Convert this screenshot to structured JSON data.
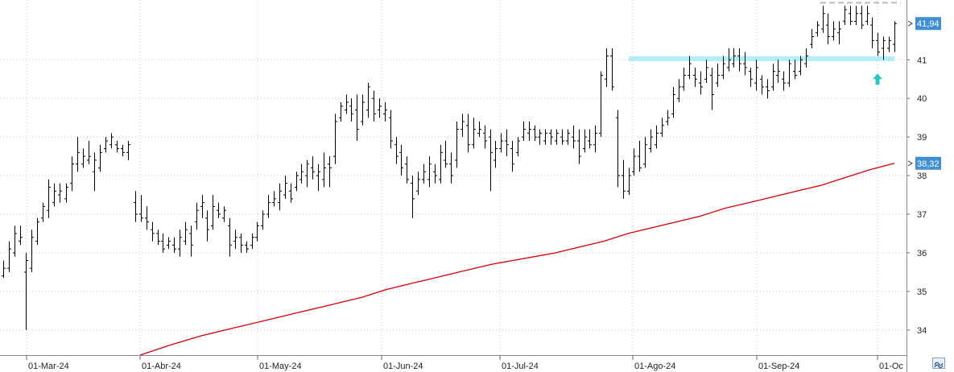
{
  "chart_data": {
    "type": "ohlc",
    "x_tick_labels": [
      "01-Mar-24",
      "01-Abr-24",
      "01-May-24",
      "01-Jun-24",
      "01-Jul-24",
      "01-Ago-24",
      "01-Sep-24",
      "01-Oc"
    ],
    "y_tick_labels": [
      "34",
      "35",
      "36",
      "37",
      "38",
      "39",
      "40",
      "41"
    ],
    "ylim": [
      33.35,
      42.55
    ],
    "grid": "dotted",
    "last_price_label": "41,94",
    "last_price": 41.94,
    "ma_label": "38,32",
    "ma_value": 38.32,
    "ma_color": "#d40000",
    "bar_color": "#000000",
    "resistance_level": 41.03,
    "resistance_color": "#a8ecf4",
    "top_dashed_level": 42.48,
    "arrow_color": "#2ec4c4",
    "price_tag_color": "#3f8fd2",
    "bars": [
      [
        35.35,
        35.8,
        35.4,
        35.6
      ],
      [
        35.5,
        36.3,
        35.6,
        36.1
      ],
      [
        35.9,
        36.7,
        36.0,
        36.5
      ],
      [
        36.2,
        36.7,
        36.3,
        36.4
      ],
      [
        34.0,
        36.0,
        35.5,
        35.8
      ],
      [
        35.5,
        36.6,
        35.6,
        36.4
      ],
      [
        36.2,
        36.9,
        36.3,
        36.8
      ],
      [
        36.8,
        37.3,
        36.9,
        37.2
      ],
      [
        36.9,
        37.9,
        37.1,
        37.7
      ],
      [
        37.2,
        37.8,
        37.3,
        37.6
      ],
      [
        37.3,
        37.8,
        37.5,
        37.6
      ],
      [
        37.3,
        37.8,
        37.4,
        37.7
      ],
      [
        37.6,
        38.5,
        37.8,
        38.3
      ],
      [
        38.1,
        39.0,
        38.3,
        38.6
      ],
      [
        38.2,
        38.7,
        38.3,
        38.5
      ],
      [
        38.3,
        38.9,
        38.4,
        38.5
      ],
      [
        37.6,
        38.6,
        38.1,
        38.4
      ],
      [
        38.1,
        38.8,
        38.2,
        38.6
      ],
      [
        38.6,
        39.0,
        38.7,
        38.9
      ],
      [
        38.7,
        39.1,
        38.8,
        39.0
      ],
      [
        38.6,
        38.9,
        38.8,
        38.7
      ],
      [
        38.5,
        38.8,
        38.7,
        38.6
      ],
      [
        38.4,
        38.9,
        38.6,
        38.8
      ],
      [
        36.8,
        37.6,
        37.3,
        37.0
      ],
      [
        36.8,
        37.5,
        37.0,
        36.9
      ],
      [
        36.6,
        37.2,
        36.9,
        36.8
      ],
      [
        36.3,
        36.8,
        36.6,
        36.5
      ],
      [
        36.2,
        36.6,
        36.5,
        36.3
      ],
      [
        36.0,
        36.5,
        36.3,
        36.1
      ],
      [
        36.1,
        36.4,
        36.2,
        36.3
      ],
      [
        36.0,
        36.4,
        36.2,
        36.1
      ],
      [
        35.9,
        36.6,
        36.1,
        36.4
      ],
      [
        36.2,
        36.8,
        36.3,
        36.6
      ],
      [
        35.9,
        36.7,
        36.5,
        36.2
      ],
      [
        36.6,
        37.3,
        36.8,
        37.1
      ],
      [
        36.9,
        37.5,
        37.2,
        37.3
      ],
      [
        36.3,
        37.1,
        36.9,
        36.6
      ],
      [
        36.6,
        37.5,
        36.7,
        37.2
      ],
      [
        36.9,
        37.3,
        37.1,
        37.0
      ],
      [
        36.8,
        37.2,
        36.9,
        37.1
      ],
      [
        35.9,
        36.9,
        36.7,
        36.2
      ],
      [
        36.1,
        36.6,
        36.3,
        36.4
      ],
      [
        36.0,
        36.5,
        36.4,
        36.2
      ],
      [
        36.0,
        36.3,
        36.2,
        36.1
      ],
      [
        36.1,
        36.5,
        36.2,
        36.4
      ],
      [
        36.3,
        36.8,
        36.4,
        36.7
      ],
      [
        36.6,
        37.1,
        36.7,
        37.0
      ],
      [
        36.9,
        37.5,
        37.0,
        37.3
      ],
      [
        37.2,
        37.6,
        37.3,
        37.4
      ],
      [
        37.1,
        37.8,
        37.3,
        37.6
      ],
      [
        37.4,
        38.0,
        37.5,
        37.8
      ],
      [
        37.3,
        37.8,
        37.6,
        37.4
      ],
      [
        37.6,
        38.1,
        37.7,
        38.0
      ],
      [
        37.8,
        38.3,
        37.9,
        38.1
      ],
      [
        37.7,
        38.4,
        38.0,
        38.3
      ],
      [
        37.9,
        38.5,
        38.2,
        38.1
      ],
      [
        37.6,
        38.3,
        38.0,
        38.1
      ],
      [
        37.7,
        38.6,
        37.9,
        38.2
      ],
      [
        37.7,
        38.5,
        38.3,
        38.2
      ],
      [
        38.3,
        39.6,
        38.5,
        39.4
      ],
      [
        39.4,
        39.9,
        39.5,
        39.8
      ],
      [
        39.6,
        40.1,
        39.7,
        39.9
      ],
      [
        39.4,
        40.0,
        39.8,
        39.6
      ],
      [
        38.9,
        40.1,
        39.7,
        39.2
      ],
      [
        39.3,
        40.1,
        39.4,
        39.9
      ],
      [
        39.5,
        40.4,
        39.7,
        40.3
      ],
      [
        39.4,
        40.2,
        40.0,
        39.6
      ],
      [
        39.5,
        40.0,
        39.7,
        39.8
      ],
      [
        39.4,
        39.9,
        39.6,
        39.7
      ],
      [
        38.7,
        39.7,
        39.5,
        38.9
      ],
      [
        38.3,
        39.0,
        38.8,
        38.5
      ],
      [
        38.0,
        38.8,
        38.6,
        38.2
      ],
      [
        37.8,
        38.5,
        38.3,
        37.9
      ],
      [
        36.9,
        38.0,
        37.8,
        37.4
      ],
      [
        37.5,
        38.1,
        37.6,
        37.9
      ],
      [
        37.8,
        38.3,
        37.9,
        38.1
      ],
      [
        37.7,
        38.5,
        37.9,
        38.3
      ],
      [
        37.8,
        38.3,
        38.1,
        38.0
      ],
      [
        37.8,
        38.8,
        37.9,
        38.6
      ],
      [
        38.2,
        38.9,
        38.4,
        38.3
      ],
      [
        37.8,
        38.6,
        38.3,
        38.0
      ],
      [
        38.2,
        39.4,
        38.4,
        39.2
      ],
      [
        39.0,
        39.6,
        39.2,
        39.4
      ],
      [
        38.6,
        39.6,
        39.3,
        38.8
      ],
      [
        38.7,
        39.5,
        38.8,
        39.2
      ],
      [
        39.0,
        39.4,
        39.1,
        39.2
      ],
      [
        38.7,
        39.3,
        39.1,
        38.9
      ],
      [
        37.6,
        39.2,
        39.0,
        38.6
      ],
      [
        38.2,
        38.9,
        38.4,
        38.7
      ],
      [
        38.6,
        39.1,
        38.7,
        38.9
      ],
      [
        38.5,
        39.2,
        38.9,
        38.8
      ],
      [
        38.1,
        38.9,
        38.7,
        38.3
      ],
      [
        38.5,
        39.0,
        38.6,
        38.9
      ],
      [
        38.9,
        39.4,
        39.0,
        39.2
      ],
      [
        38.9,
        39.4,
        39.1,
        39.2
      ],
      [
        38.9,
        39.3,
        39.2,
        39.0
      ],
      [
        38.8,
        39.2,
        39.0,
        39.1
      ],
      [
        38.8,
        39.2,
        38.9,
        39.1
      ],
      [
        38.8,
        39.2,
        39.1,
        39.0
      ],
      [
        38.8,
        39.2,
        38.9,
        39.1
      ],
      [
        38.8,
        39.2,
        39.0,
        38.9
      ],
      [
        38.8,
        39.2,
        38.9,
        39.1
      ],
      [
        38.7,
        39.3,
        39.0,
        38.9
      ],
      [
        38.3,
        39.2,
        38.9,
        38.5
      ],
      [
        38.6,
        39.2,
        38.7,
        39.0
      ],
      [
        38.7,
        39.2,
        38.9,
        38.8
      ],
      [
        38.6,
        39.3,
        38.8,
        39.1
      ],
      [
        39.0,
        40.7,
        39.1,
        40.6
      ],
      [
        40.3,
        41.3,
        40.5,
        41.1
      ],
      [
        40.2,
        41.3,
        41.1,
        40.3
      ],
      [
        37.7,
        39.7,
        39.5,
        38.0
      ],
      [
        37.4,
        38.4,
        38.0,
        37.6
      ],
      [
        37.5,
        38.2,
        37.6,
        38.0
      ],
      [
        38.0,
        38.7,
        38.1,
        38.5
      ],
      [
        38.1,
        38.9,
        38.5,
        38.2
      ],
      [
        38.2,
        39.0,
        38.3,
        38.8
      ],
      [
        38.6,
        39.2,
        38.7,
        39.0
      ],
      [
        38.7,
        39.3,
        38.8,
        39.1
      ],
      [
        39.0,
        39.5,
        39.1,
        39.3
      ],
      [
        39.3,
        39.7,
        39.4,
        39.5
      ],
      [
        39.5,
        40.3,
        39.6,
        40.1
      ],
      [
        39.9,
        40.5,
        40.0,
        40.3
      ],
      [
        40.2,
        40.8,
        40.3,
        40.6
      ],
      [
        40.5,
        41.1,
        40.6,
        40.9
      ],
      [
        40.3,
        40.8,
        40.6,
        40.5
      ],
      [
        40.1,
        40.7,
        40.4,
        40.3
      ],
      [
        40.4,
        41.0,
        40.5,
        40.8
      ],
      [
        39.7,
        40.8,
        40.6,
        40.1
      ],
      [
        40.3,
        40.9,
        40.4,
        40.6
      ],
      [
        40.5,
        41.1,
        40.6,
        40.9
      ],
      [
        40.7,
        41.3,
        40.8,
        41.0
      ],
      [
        40.8,
        41.3,
        40.9,
        41.1
      ],
      [
        40.7,
        41.3,
        41.1,
        40.9
      ],
      [
        40.6,
        41.2,
        40.9,
        40.8
      ],
      [
        40.3,
        40.8,
        40.7,
        40.5
      ],
      [
        40.2,
        41.0,
        40.4,
        40.8
      ],
      [
        40.1,
        40.6,
        40.5,
        40.3
      ],
      [
        40.0,
        40.5,
        40.3,
        40.2
      ],
      [
        40.2,
        40.9,
        40.3,
        40.7
      ],
      [
        40.4,
        41.0,
        40.6,
        40.7
      ],
      [
        40.2,
        40.7,
        40.5,
        40.4
      ],
      [
        40.3,
        41.0,
        40.4,
        40.9
      ],
      [
        40.5,
        41.0,
        40.7,
        40.6
      ],
      [
        40.6,
        41.1,
        40.7,
        41.0
      ],
      [
        40.8,
        41.3,
        40.9,
        41.1
      ],
      [
        41.3,
        41.8,
        41.4,
        41.6
      ],
      [
        41.6,
        42.0,
        41.7,
        41.9
      ],
      [
        41.7,
        42.4,
        41.8,
        42.2
      ],
      [
        41.4,
        42.2,
        41.9,
        41.6
      ],
      [
        41.5,
        42.0,
        41.6,
        41.8
      ],
      [
        41.4,
        42.0,
        41.7,
        41.8
      ],
      [
        41.9,
        42.4,
        42.0,
        42.3
      ],
      [
        41.9,
        42.4,
        42.2,
        42.0
      ],
      [
        41.9,
        42.4,
        42.0,
        42.2
      ],
      [
        41.8,
        42.4,
        42.2,
        41.9
      ],
      [
        41.9,
        42.4,
        42.0,
        42.2
      ],
      [
        41.3,
        42.1,
        41.9,
        41.5
      ],
      [
        41.1,
        41.7,
        41.5,
        41.2
      ],
      [
        41.0,
        41.6,
        41.3,
        41.5
      ],
      [
        41.2,
        41.6,
        41.3,
        41.5
      ],
      [
        41.2,
        42.0,
        41.4,
        41.94
      ]
    ],
    "ma": [
      [
        174,
        33.35
      ],
      [
        210,
        33.6
      ],
      [
        250,
        33.85
      ],
      [
        290,
        34.05
      ],
      [
        330,
        34.25
      ],
      [
        370,
        34.45
      ],
      [
        410,
        34.65
      ],
      [
        450,
        34.85
      ],
      [
        480,
        35.05
      ],
      [
        510,
        35.2
      ],
      [
        540,
        35.35
      ],
      [
        570,
        35.5
      ],
      [
        610,
        35.7
      ],
      [
        650,
        35.85
      ],
      [
        690,
        36.0
      ],
      [
        720,
        36.15
      ],
      [
        750,
        36.3
      ],
      [
        780,
        36.5
      ],
      [
        810,
        36.65
      ],
      [
        840,
        36.8
      ],
      [
        870,
        36.95
      ],
      [
        900,
        37.15
      ],
      [
        930,
        37.3
      ],
      [
        960,
        37.45
      ],
      [
        990,
        37.6
      ],
      [
        1020,
        37.75
      ],
      [
        1050,
        37.95
      ],
      [
        1080,
        38.15
      ],
      [
        1111,
        38.32
      ]
    ]
  }
}
